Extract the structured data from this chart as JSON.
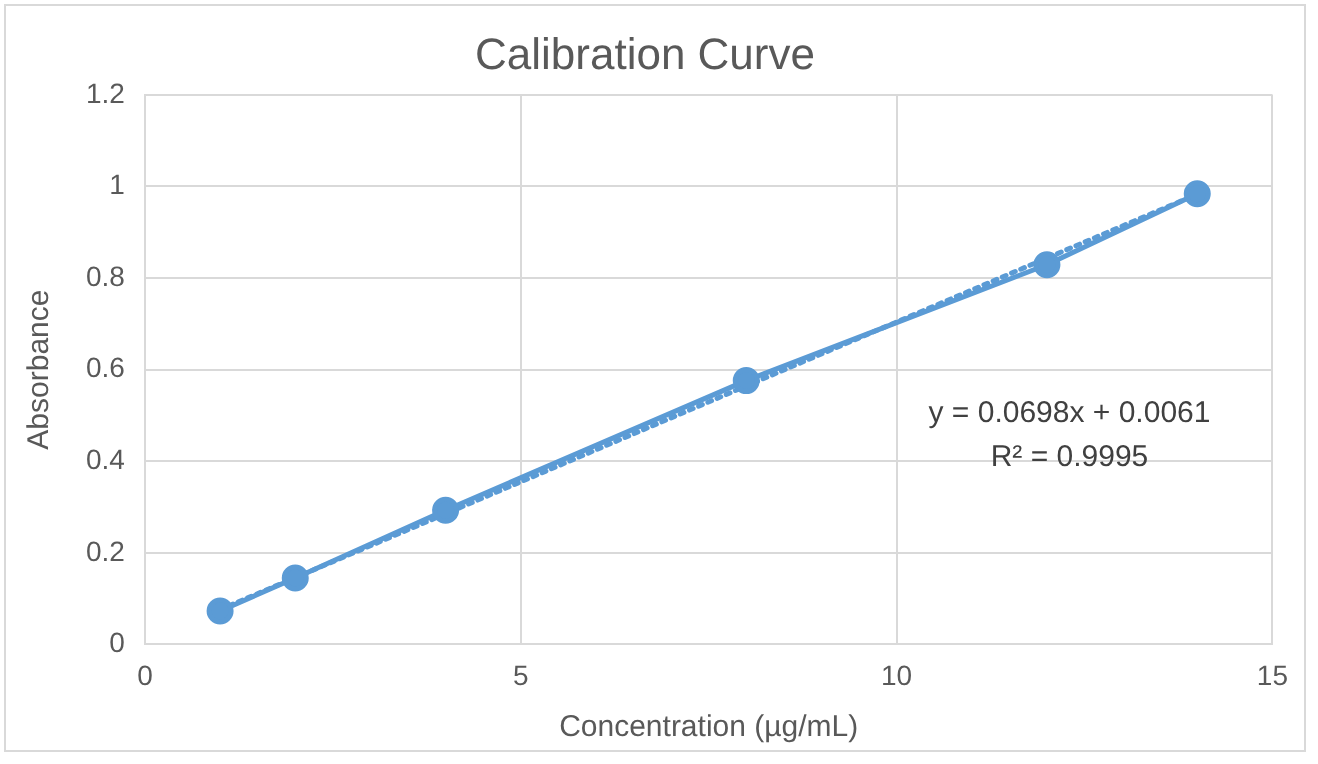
{
  "chart_data": {
    "type": "line",
    "title": "Calibration Curve",
    "xlabel": "Concentration (µg/mL)",
    "ylabel": "Absorbance",
    "x": [
      1,
      2,
      4,
      8,
      12,
      14
    ],
    "series": [
      {
        "color": "#5b9bd5",
        "values": [
          0.073,
          0.145,
          0.293,
          0.576,
          0.829,
          0.984
        ],
        "marker": "circle",
        "line_style": "solid"
      },
      {
        "type": "line",
        "color": "#5b9bd5",
        "x": [
          1,
          14
        ],
        "values": [
          0.076,
          0.983
        ],
        "marker": "none",
        "line_style": "dotted"
      }
    ],
    "annotations": [
      "y = 0.0698x + 0.0061",
      "R² = 0.9995"
    ],
    "xlim": [
      0,
      15
    ],
    "xticks": [
      0,
      5,
      10,
      15
    ],
    "ylim": [
      0,
      1.2
    ],
    "yticks": [
      0,
      0.2,
      0.4,
      0.6,
      0.8,
      1,
      1.2
    ],
    "grid": true,
    "legend": false
  }
}
